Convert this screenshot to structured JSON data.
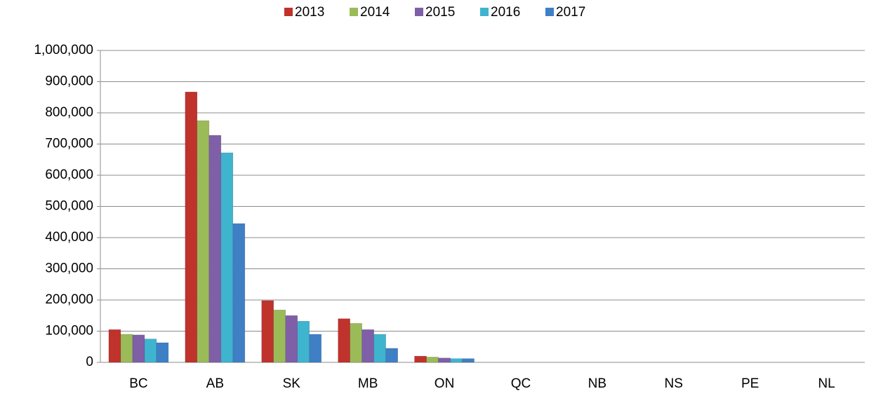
{
  "chart_data": {
    "type": "bar",
    "categories": [
      "BC",
      "AB",
      "SK",
      "MB",
      "ON",
      "QC",
      "NB",
      "NS",
      "PE",
      "NL"
    ],
    "series": [
      {
        "name": "2013",
        "color": "#c0322c",
        "values": [
          105000,
          867000,
          198000,
          140000,
          20000,
          0,
          0,
          0,
          0,
          0
        ]
      },
      {
        "name": "2014",
        "color": "#9bbb59",
        "values": [
          90000,
          775000,
          168000,
          125000,
          17000,
          0,
          0,
          0,
          0,
          0
        ]
      },
      {
        "name": "2015",
        "color": "#7f5fa8",
        "values": [
          88000,
          728000,
          150000,
          105000,
          14000,
          0,
          0,
          0,
          0,
          0
        ]
      },
      {
        "name": "2016",
        "color": "#3fb4cf",
        "values": [
          75000,
          672000,
          132000,
          90000,
          12000,
          0,
          0,
          0,
          0,
          0
        ]
      },
      {
        "name": "2017",
        "color": "#3f7fc6",
        "values": [
          63000,
          445000,
          90000,
          45000,
          12000,
          0,
          0,
          0,
          0,
          0
        ]
      }
    ],
    "ylim": [
      0,
      1000000
    ],
    "yticks": [
      0,
      {
        "value": 100000,
        "label": "100,000"
      },
      {
        "value": 200000,
        "label": "200,000"
      },
      {
        "value": 300000,
        "label": "300,000"
      },
      {
        "value": 400000,
        "label": "400,000"
      },
      {
        "value": 500000,
        "label": "500,000"
      },
      {
        "value": 600000,
        "label": "600,000"
      },
      {
        "value": 700000,
        "label": "700,000"
      },
      {
        "value": 800000,
        "label": "800,000"
      },
      {
        "value": 900000,
        "label": "900,000"
      },
      {
        "value": 1000000,
        "label": "1,000,000"
      }
    ],
    "grid": true,
    "legend": "top"
  }
}
